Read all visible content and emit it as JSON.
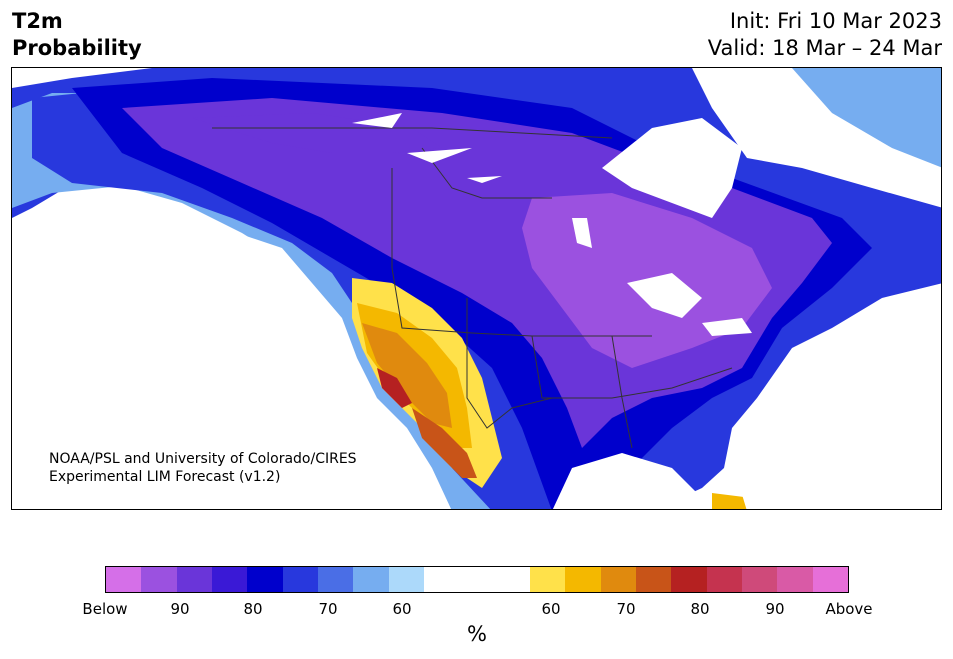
{
  "title": {
    "left": "T2m\nProbability",
    "init": "Init: Fri 10 Mar 2023",
    "valid": "Valid: 18 Mar – 24 Mar"
  },
  "credit": {
    "line1": "NOAA/PSL and University of Colorado/CIRES",
    "line2": "Experimental LIM Forecast (v1.2)"
  },
  "colorbar": {
    "unit": "%",
    "colors": [
      "#d56fe8",
      "#9b51e0",
      "#6a35d9",
      "#3a19d6",
      "#0000cc",
      "#2838dd",
      "#4a6ee6",
      "#76adf0",
      "#acd9fa",
      "#ffffff",
      "#ffe14a",
      "#f4b800",
      "#e08a0e",
      "#c85418",
      "#b52121",
      "#c5334f",
      "#cf4a7a",
      "#d95aa6",
      "#e66fd8"
    ],
    "labels": [
      "Below",
      "90",
      "80",
      "70",
      "60",
      "60",
      "70",
      "80",
      "90",
      "Above"
    ],
    "land_outline": "#333333"
  }
}
